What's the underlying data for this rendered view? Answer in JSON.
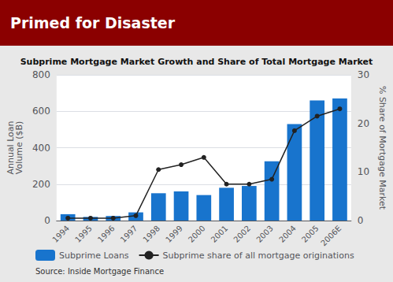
{
  "chart_data": {
    "type": "bar",
    "title": "Primed for Disaster",
    "subtitle": "Subprime Mortgage Market Growth and Share of Total Mortgage Market",
    "categories": [
      "1994",
      "1995",
      "1996",
      "1997",
      "1998",
      "1999",
      "2000",
      "2001",
      "2002",
      "2003",
      "2004",
      "2005",
      "2006E"
    ],
    "series": [
      {
        "name": "Subprime Loans",
        "type": "bar",
        "color": "#1874CD",
        "values": [
          35,
          20,
          25,
          45,
          150,
          160,
          140,
          180,
          190,
          325,
          530,
          660,
          670
        ]
      },
      {
        "name": "Subprime share of all mortgage originations",
        "type": "line",
        "color": "#222222",
        "marker": "circle",
        "axis": "y2",
        "values": [
          0.5,
          0.5,
          0.5,
          1.0,
          10.5,
          11.5,
          13.0,
          7.5,
          7.5,
          8.5,
          18.5,
          21.5,
          23.0
        ]
      }
    ],
    "ylabel": "Annual Loan\nVolume ($B)",
    "y2label": "% Share of Mortgage Market",
    "ylim": [
      0,
      800
    ],
    "yticks": [
      0,
      200,
      400,
      600,
      800
    ],
    "y2lim": [
      0,
      30
    ],
    "y2ticks": [
      0,
      10,
      20,
      30
    ],
    "grid": true,
    "legend": "bottom",
    "annotations": [
      "Source: Inside Mortgage Finance"
    ]
  }
}
